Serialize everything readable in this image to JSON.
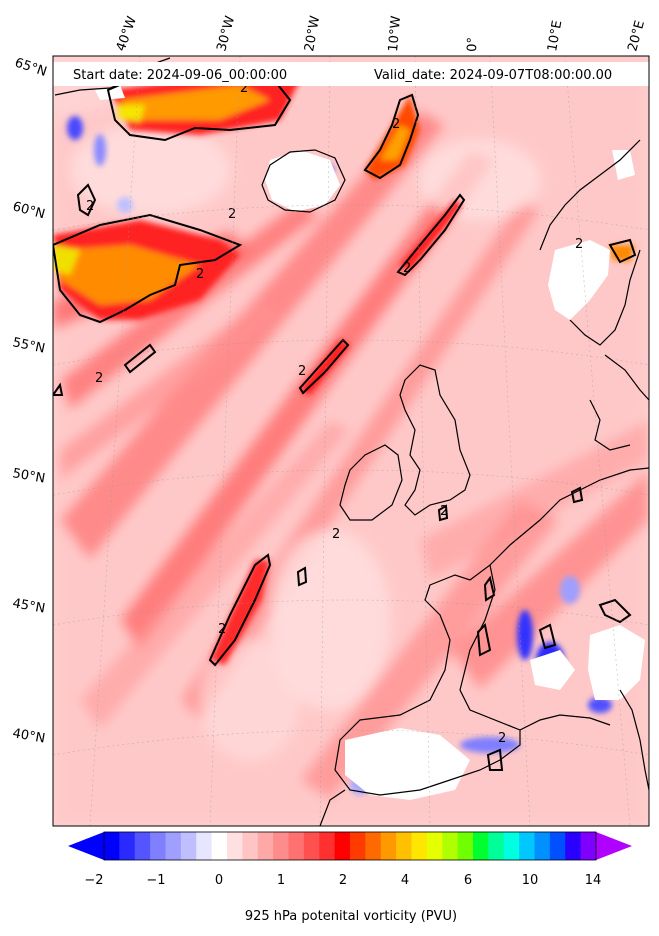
{
  "header": {
    "start_date": "Start date: 2024-09-06_00:00:00",
    "valid_date": "Valid_date: 2024-09-07T08:00:00.00"
  },
  "map": {
    "lon_labels": [
      "40°W",
      "30°W",
      "20°W",
      "10°W",
      "0°",
      "10°E",
      "20°E"
    ],
    "lat_labels": [
      "65°N",
      "60°N",
      "55°N",
      "50°N",
      "45°N",
      "40°N"
    ],
    "contour_label": "2",
    "land_color": "#ffffff",
    "coast_color": "#000000"
  },
  "colorbar": {
    "label": "925 hPa potenital vorticity (PVU)",
    "ticks": [
      "−2",
      "−1",
      "0",
      "1",
      "2",
      "4",
      "6",
      "10",
      "14"
    ],
    "colors": [
      "#0000ff",
      "#2a2aff",
      "#5555ff",
      "#7f7fff",
      "#9f9fff",
      "#bfbfff",
      "#e6e6ff",
      "#ffffff",
      "#ffe0e0",
      "#ffc4c4",
      "#ffa8a8",
      "#ff8c8c",
      "#ff7070",
      "#ff5050",
      "#ff3030",
      "#ff0000",
      "#ff3b00",
      "#ff6a00",
      "#ff9900",
      "#ffc000",
      "#ffe600",
      "#e6ff00",
      "#b0ff00",
      "#70ff00",
      "#00ff30",
      "#00ff9a",
      "#00ffe0",
      "#00c8ff",
      "#0090ff",
      "#0050ff",
      "#2a00ff",
      "#8000ff"
    ],
    "extend_low_color": "#0000ff",
    "extend_high_color": "#b000ff"
  }
}
